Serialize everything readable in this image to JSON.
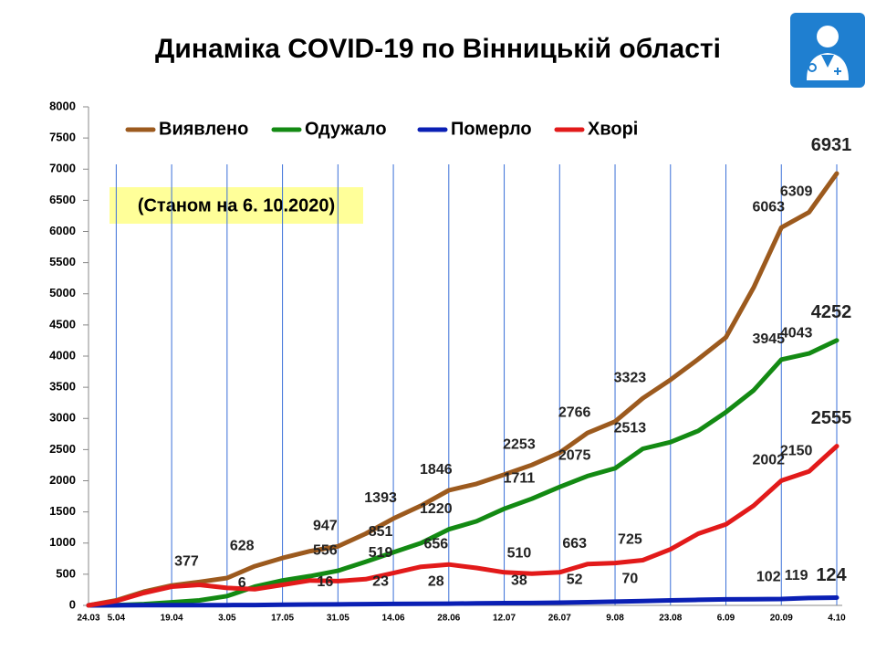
{
  "chart_data": {
    "type": "line",
    "title": "Динаміка COVID-19 по Вінницькій області",
    "subtitle": "(Станом на 6. 10.2020)",
    "categories": [
      "24.03",
      "5.04",
      null,
      "19.04",
      null,
      "3.05",
      null,
      "17.05",
      null,
      "31.05",
      null,
      "14.06",
      null,
      "28.06",
      null,
      "12.07",
      null,
      "26.07",
      null,
      "9.08",
      null,
      "23.08",
      null,
      "6.09",
      null,
      "20.09",
      null,
      "4.10"
    ],
    "series": [
      {
        "name": "Виявлено",
        "color": "#9c5a1e",
        "values": [
          0,
          80,
          220,
          320,
          377,
          440,
          628,
          760,
          870,
          947,
          1150,
          1393,
          1600,
          1846,
          1950,
          2100,
          2253,
          2450,
          2766,
          2950,
          3323,
          3620,
          3950,
          4300,
          5100,
          6063,
          6309,
          6931
        ],
        "value_labels": [
          null,
          null,
          null,
          null,
          "377",
          null,
          "628",
          null,
          null,
          "947",
          null,
          "1393",
          null,
          "1846",
          null,
          null,
          "2253",
          null,
          "2766",
          null,
          "3323",
          null,
          null,
          null,
          null,
          "6063",
          "6309",
          "6931"
        ]
      },
      {
        "name": "Одужало",
        "color": "#138a13",
        "values": [
          0,
          5,
          20,
          50,
          80,
          150,
          300,
          400,
          470,
          556,
          700,
          851,
          1000,
          1220,
          1350,
          1550,
          1711,
          1900,
          2075,
          2200,
          2513,
          2620,
          2800,
          3100,
          3450,
          3945,
          4043,
          4252
        ],
        "value_labels": [
          null,
          null,
          null,
          null,
          null,
          null,
          null,
          null,
          null,
          "556",
          null,
          "851",
          null,
          "1220",
          null,
          null,
          "1711",
          null,
          "2075",
          null,
          "2513",
          null,
          null,
          null,
          null,
          "3945",
          "4043",
          "4252"
        ]
      },
      {
        "name": "Померло",
        "color": "#0a1fb4",
        "values": [
          0,
          1,
          3,
          4,
          5,
          5,
          6,
          10,
          14,
          16,
          20,
          23,
          26,
          28,
          32,
          36,
          38,
          44,
          52,
          60,
          70,
          80,
          90,
          96,
          100,
          102,
          119,
          124
        ],
        "value_labels": [
          null,
          null,
          null,
          null,
          null,
          null,
          "6",
          null,
          null,
          "16",
          null,
          "23",
          null,
          "28",
          null,
          null,
          "38",
          null,
          "52",
          null,
          "70",
          null,
          null,
          null,
          null,
          "102",
          "119",
          "124"
        ]
      },
      {
        "name": "Хворі",
        "color": "#e21a1a",
        "values": [
          0,
          70,
          200,
          300,
          330,
          280,
          260,
          330,
          400,
          390,
          420,
          519,
          620,
          656,
          600,
          530,
          510,
          530,
          663,
          680,
          725,
          900,
          1150,
          1300,
          1600,
          2002,
          2150,
          2555
        ],
        "value_labels": [
          null,
          null,
          null,
          null,
          null,
          null,
          null,
          null,
          null,
          null,
          null,
          "519",
          null,
          "656",
          null,
          null,
          "510",
          null,
          "663",
          null,
          "725",
          null,
          null,
          null,
          null,
          "2002",
          "2150",
          "2555"
        ]
      }
    ],
    "ylim": [
      0,
      8000
    ],
    "yticks": [
      0,
      500,
      1000,
      1500,
      2000,
      2500,
      3000,
      3500,
      4000,
      4500,
      5000,
      5500,
      6000,
      6500,
      7000,
      7500,
      8000
    ],
    "grid": true
  }
}
